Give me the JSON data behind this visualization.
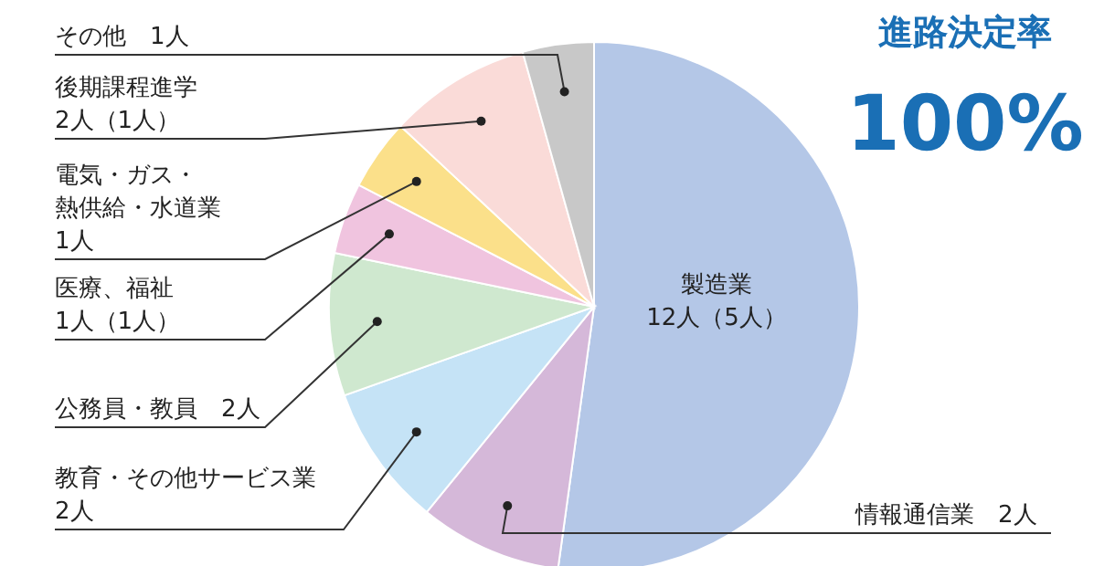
{
  "chart_data": {
    "type": "pie",
    "title": "進路決定率",
    "subtitle": "100%",
    "categories": [
      "製造業",
      "情報通信業",
      "教育・その他サービス業",
      "公務員・教員",
      "医療、福祉",
      "電気・ガス・熱供給・水道業",
      "後期課程進学",
      "その他"
    ],
    "values": [
      12,
      2,
      2,
      2,
      1,
      1,
      2,
      1
    ],
    "value_labels": [
      "12人（5人）",
      "2人",
      "2人",
      "2人",
      "1人（1人）",
      "1人",
      "2人（1人）",
      "1人"
    ],
    "colors": [
      "#b4c7e7",
      "#d5b8d9",
      "#c5e3f6",
      "#cfe8cf",
      "#f0c4df",
      "#fbe08a",
      "#fadbd8",
      "#c8c8c8"
    ],
    "legend": false
  }
}
